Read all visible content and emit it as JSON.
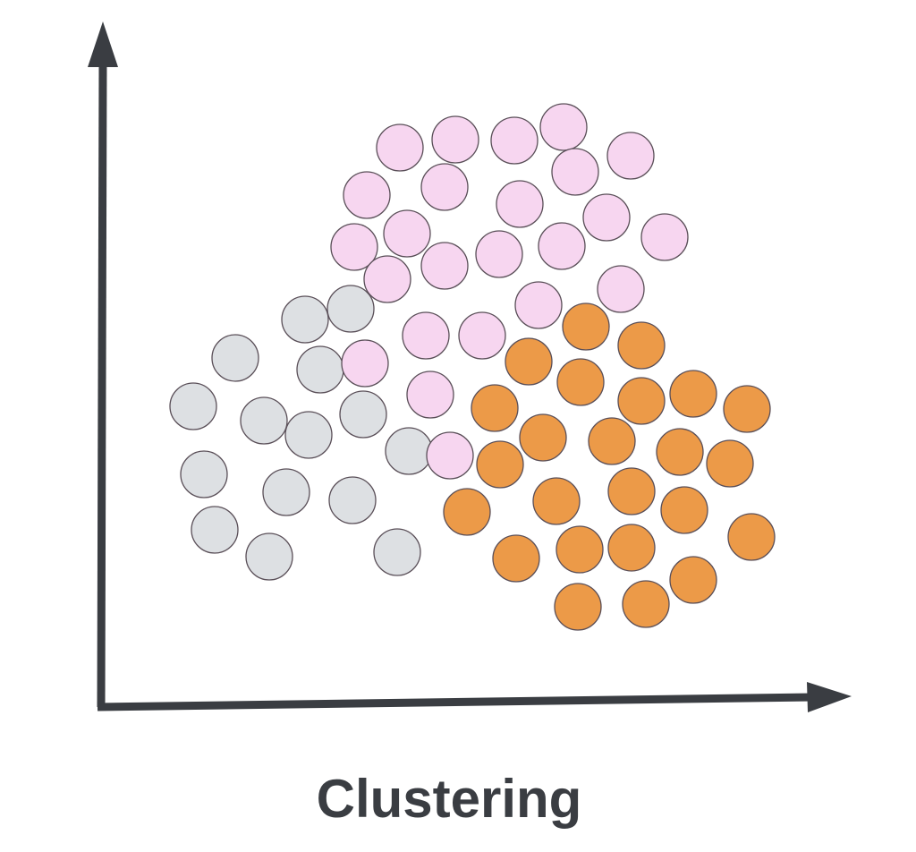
{
  "title": "Clustering",
  "colors": {
    "axis": "#3a3d42",
    "outline": "#5a4f58",
    "cluster_pink": "#f7d6f0",
    "cluster_gray": "#dde0e3",
    "cluster_orange": "#ec9a48"
  },
  "clusters": [
    {
      "name": "gray",
      "color_key": "cluster_gray"
    },
    {
      "name": "pink",
      "color_key": "cluster_pink"
    },
    {
      "name": "orange",
      "color_key": "cluster_orange"
    }
  ]
}
